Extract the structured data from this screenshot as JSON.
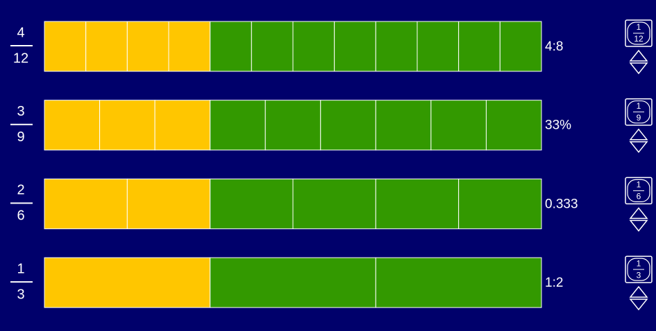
{
  "rows": [
    {
      "numerator": "4",
      "denominator": "12",
      "label": "4:8",
      "unit": {
        "numerator": "1",
        "denominator": "12"
      }
    },
    {
      "numerator": "3",
      "denominator": "9",
      "label": "33%",
      "unit": {
        "numerator": "1",
        "denominator": "9"
      }
    },
    {
      "numerator": "2",
      "denominator": "6",
      "label": "0.333",
      "unit": {
        "numerator": "1",
        "denominator": "6"
      }
    },
    {
      "numerator": "1",
      "denominator": "3",
      "label": "1:2",
      "unit": {
        "numerator": "1",
        "denominator": "3"
      }
    }
  ]
}
